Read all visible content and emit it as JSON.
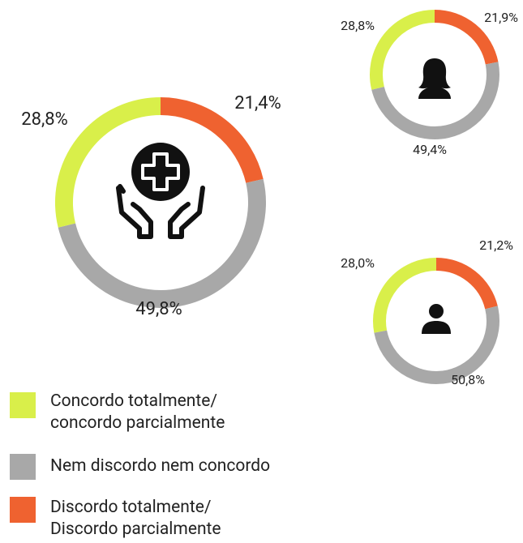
{
  "legend": {
    "labels": [
      "Concordo totalmente/\nconcordo parcialmente",
      "Nem discordo nem concordo",
      "Discordo totalmente/\nDiscordo parcialmente"
    ],
    "colors": [
      "#d9ef4a",
      "#a8a8a8",
      "#ef6230"
    ]
  },
  "chart_data": [
    {
      "type": "donut",
      "values": [
        28.8,
        49.8,
        21.4
      ],
      "value_labels": [
        "28,8%",
        "49,8%",
        "21,4%"
      ]
    },
    {
      "type": "donut",
      "values": [
        28.8,
        49.4,
        21.9
      ],
      "value_labels": [
        "28,8%",
        "49,4%",
        "21,9%"
      ]
    },
    {
      "type": "donut",
      "values": [
        28.0,
        50.8,
        21.2
      ],
      "value_labels": [
        "28,0%",
        "50,8%",
        "21,2%"
      ]
    }
  ]
}
